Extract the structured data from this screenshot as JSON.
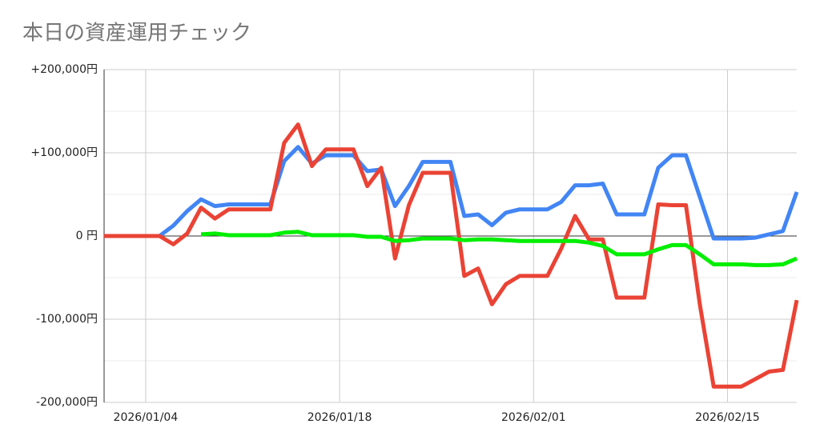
{
  "chart_data": {
    "type": "line",
    "title": "本日の資産運用チェック",
    "x": [
      "2026/01/01",
      "2026/01/02",
      "2026/01/03",
      "2026/01/04",
      "2026/01/05",
      "2026/01/06",
      "2026/01/07",
      "2026/01/08",
      "2026/01/09",
      "2026/01/10",
      "2026/01/11",
      "2026/01/12",
      "2026/01/13",
      "2026/01/14",
      "2026/01/15",
      "2026/01/16",
      "2026/01/17",
      "2026/01/18",
      "2026/01/19",
      "2026/01/20",
      "2026/01/21",
      "2026/01/22",
      "2026/01/23",
      "2026/01/24",
      "2026/01/25",
      "2026/01/26",
      "2026/01/27",
      "2026/01/28",
      "2026/01/29",
      "2026/01/30",
      "2026/01/31",
      "2026/02/01",
      "2026/02/02",
      "2026/02/03",
      "2026/02/04",
      "2026/02/05",
      "2026/02/06",
      "2026/02/07",
      "2026/02/08",
      "2026/02/09",
      "2026/02/10",
      "2026/02/11",
      "2026/02/12",
      "2026/02/13",
      "2026/02/14",
      "2026/02/15",
      "2026/02/16",
      "2026/02/17",
      "2026/02/18",
      "2026/02/19",
      "2026/02/20"
    ],
    "series": [
      {
        "color": "#4285f4",
        "values": [
          0,
          0,
          0,
          0,
          0,
          12500,
          30000,
          44000,
          36000,
          38000,
          38000,
          38000,
          38000,
          90000,
          107000,
          87000,
          97000,
          97000,
          97000,
          78000,
          80000,
          36000,
          60000,
          89000,
          89000,
          89000,
          24000,
          26000,
          13000,
          28000,
          32000,
          32000,
          32000,
          41000,
          61000,
          61000,
          63000,
          26000,
          26000,
          26000,
          82000,
          97000,
          97000,
          47000,
          -3000,
          -3000,
          -3000,
          -2000,
          2000,
          6000,
          53000
        ]
      },
      {
        "color": "#ea4335",
        "values": [
          0,
          0,
          0,
          0,
          0,
          -10000,
          3000,
          34000,
          21000,
          32000,
          32000,
          32000,
          32000,
          112000,
          134000,
          84000,
          104000,
          104000,
          104000,
          60000,
          82000,
          -27000,
          37000,
          76000,
          76000,
          76000,
          -48000,
          -39000,
          -82000,
          -58000,
          -48000,
          -48000,
          -48000,
          -15000,
          24000,
          -4000,
          -4000,
          -74000,
          -74000,
          -74000,
          38000,
          37000,
          37000,
          -82000,
          -181000,
          -181000,
          -181000,
          -172000,
          -163000,
          -161000,
          -77000
        ]
      },
      {
        "color": "#00ee00",
        "values": [
          null,
          null,
          null,
          null,
          null,
          null,
          null,
          2000,
          3000,
          1000,
          1000,
          1000,
          1000,
          4000,
          5000,
          1000,
          1000,
          1000,
          1000,
          -1000,
          -1000,
          -6000,
          -5000,
          -3000,
          -3000,
          -3000,
          -5000,
          -4000,
          -4000,
          -5000,
          -6000,
          -6000,
          -6000,
          -6000,
          -6000,
          -8000,
          -12000,
          -22000,
          -22000,
          -22000,
          -16000,
          -11000,
          -11000,
          -22000,
          -34000,
          -34000,
          -34000,
          -35000,
          -35000,
          -34000,
          -27000
        ]
      }
    ],
    "xlim": [
      "2026/01/01",
      "2026/02/20"
    ],
    "xticks": [
      "2026/01/04",
      "2026/01/18",
      "2026/02/01",
      "2026/02/15"
    ],
    "ylim": [
      -200000,
      200000
    ],
    "yticks": [
      {
        "value": 200000,
        "label": "+200,000円"
      },
      {
        "value": 100000,
        "label": "+100,000円"
      },
      {
        "value": 0,
        "label": "0 円"
      },
      {
        "value": -100000,
        "label": "-100,000円"
      },
      {
        "value": -200000,
        "label": "-200,000円"
      }
    ],
    "y_minor_ticks": [
      150000,
      50000,
      -50000,
      -150000
    ],
    "grid": true
  }
}
